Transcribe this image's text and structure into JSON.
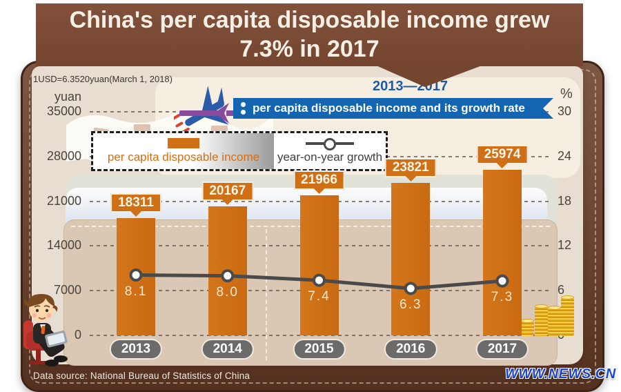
{
  "header": {
    "title_line1": "China's per capita disposable income grew",
    "title_line2": "7.3% in 2017",
    "exchange_note": "1USD=6.3520yuan(March 1, 2018)",
    "period": "2013—2017",
    "subtitle": "per capita disposable income and its growth rate"
  },
  "legend": {
    "bar_label": "per capita disposable income",
    "line_label": "year-on-year growth"
  },
  "chart_data": {
    "type": "bar+line combo",
    "title": "China's per capita disposable income grew 7.3% in 2017",
    "subtitle": "per capita disposable income and its growth rate, 2013—2017",
    "categories": [
      "2013",
      "2014",
      "2015",
      "2016",
      "2017"
    ],
    "series": [
      {
        "name": "per capita disposable income",
        "type": "bar",
        "unit": "yuan",
        "values": [
          18311,
          20167,
          21966,
          23821,
          25974
        ]
      },
      {
        "name": "year-on-year growth",
        "type": "line",
        "unit": "%",
        "values": [
          8.1,
          8.0,
          7.4,
          6.3,
          7.3
        ]
      }
    ],
    "left_axis": {
      "unit": "yuan",
      "ticks": [
        35000,
        28000,
        21000,
        14000,
        7000,
        0
      ],
      "range": [
        0,
        35000
      ]
    },
    "right_axis": {
      "unit": "%",
      "ticks": [
        30,
        24,
        18,
        12,
        6,
        0
      ],
      "range": [
        0,
        30
      ]
    },
    "grid": "dashed horizontal gridlines",
    "legend_position": "top-left inside plot"
  },
  "footer": {
    "source": "Data source: National Bureau of Statistics of China",
    "website": "www.news.cn"
  },
  "colors": {
    "bar_orange": "#cf6f16",
    "line_gray": "#4a4a4a",
    "ribbon_blue": "#1365b2",
    "title_brown": "#75462f",
    "leather_brown": "#6b4332",
    "card_beige": "#e7ddd0",
    "gold": "#e3a714"
  }
}
